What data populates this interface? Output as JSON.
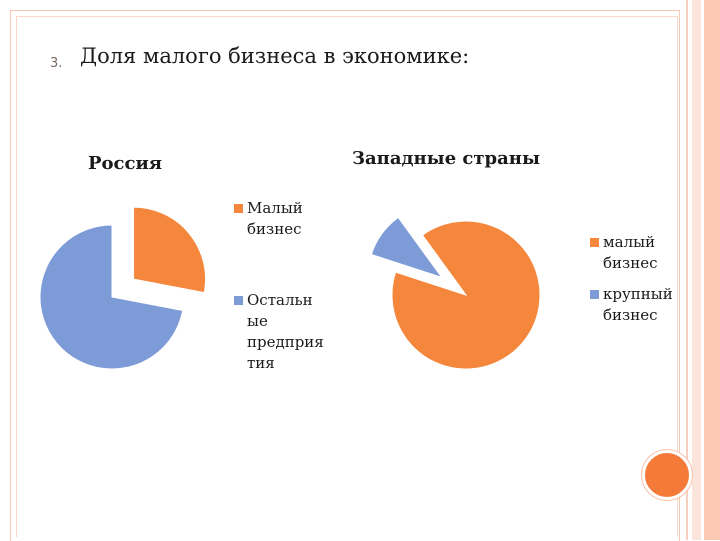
{
  "slide": {
    "number": "3.",
    "title": "Доля малого бизнеса в экономике:"
  },
  "colors": {
    "accent": "#f47a3a",
    "orange": "#f5873d",
    "blue": "#7d9bd6"
  },
  "chart_data": [
    {
      "type": "pie",
      "title": "Россия",
      "slices": [
        {
          "label": "Малый\nбизнес",
          "value": 28,
          "color": "#f5873d",
          "exploded": true
        },
        {
          "label": "Остальн\nые\nпредприя\nтия",
          "value": 72,
          "color": "#7d9bd6",
          "exploded": false
        }
      ],
      "legend": "right"
    },
    {
      "type": "pie",
      "title": "Западные страны",
      "slices": [
        {
          "label": "малый\nбизнес",
          "value": 90,
          "color": "#f5873d",
          "exploded": false
        },
        {
          "label": "крупный\nбизнес",
          "value": 10,
          "color": "#7d9bd6",
          "exploded": true
        }
      ],
      "legend": "right"
    }
  ]
}
